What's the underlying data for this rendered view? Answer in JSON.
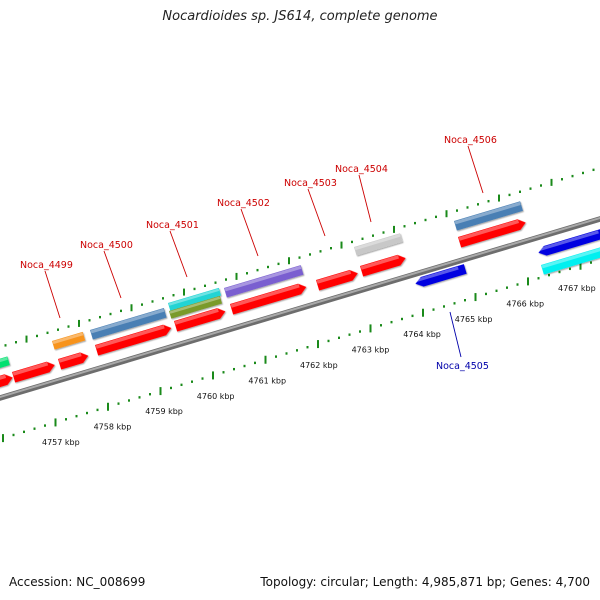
{
  "title": "Nocardioides sp. JS614, complete genome",
  "accession": "Accession: NC_008699",
  "topology": "Topology: circular; Length: 4,985,871 bp; Genes: 4,700",
  "ruler_labels": [
    "4757 kbp",
    "4758 kbp",
    "4759 kbp",
    "4760 kbp",
    "4761 kbp",
    "4762 kbp",
    "4763 kbp",
    "4764 kbp",
    "4765 kbp",
    "4766 kbp",
    "4767 kbp"
  ],
  "loci_forward": [
    "Noca_4499",
    "Noca_4500",
    "Noca_4501",
    "Noca_4502",
    "Noca_4503",
    "Noca_4504",
    "Noca_4506"
  ],
  "loci_reverse": [
    "Noca_4505"
  ],
  "colors": {
    "cds": "#ff0000",
    "gene_steelblue": "#4a7fb4",
    "gene_orange": "#f7931e",
    "gene_cyan": "#22d4d4",
    "gene_olive": "#7a9a2a",
    "gene_purple": "#7a5fd0",
    "gene_gray": "#c8c8c8",
    "gene_blue": "#0000e0",
    "gene_aqua": "#00f0f0",
    "gene_green": "#00e070",
    "tick": "#1a8a1a",
    "backbone": "#8c8c8c"
  }
}
